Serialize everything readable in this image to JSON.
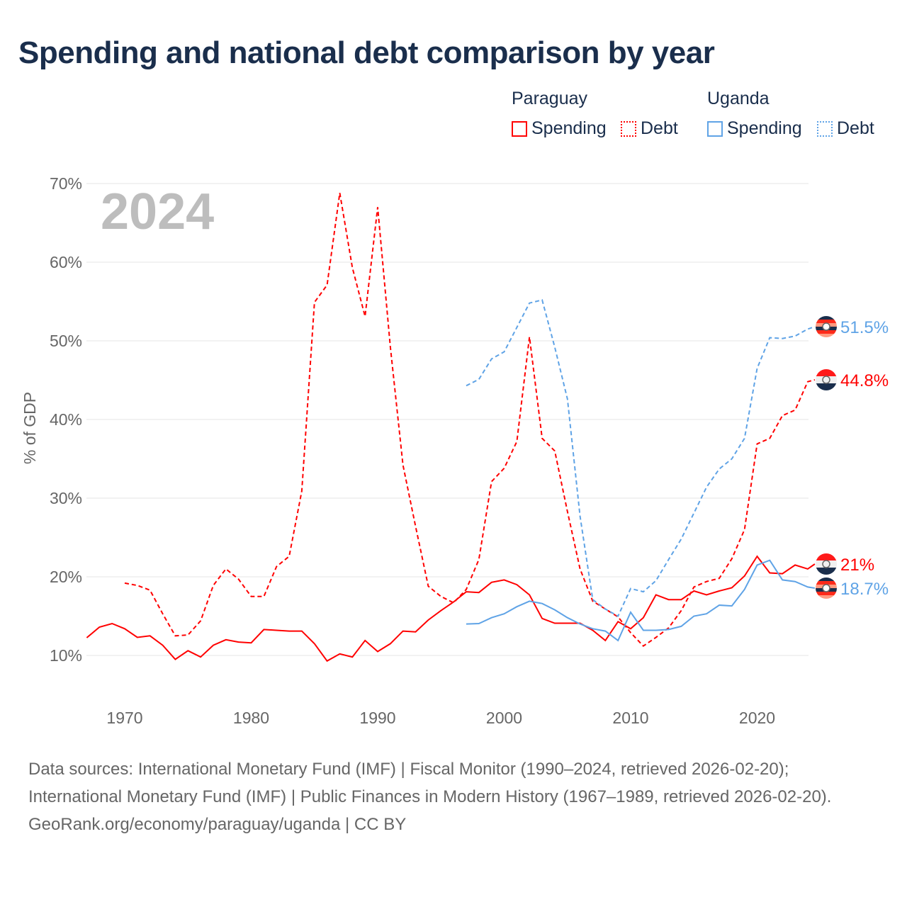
{
  "title": "Spending and national debt comparison by year",
  "legend": {
    "groups": [
      {
        "name": "Paraguay",
        "items": [
          {
            "label": "Spending",
            "style": "solid",
            "color": "#ff0000"
          },
          {
            "label": "Debt",
            "style": "dotted",
            "color": "#ff0000"
          }
        ]
      },
      {
        "name": "Uganda",
        "items": [
          {
            "label": "Spending",
            "style": "solid",
            "color": "#5fa3e6"
          },
          {
            "label": "Debt",
            "style": "dotted",
            "color": "#5fa3e6"
          }
        ]
      }
    ]
  },
  "year_overlay": "2024",
  "footer": {
    "sources": "Data sources: International Monetary Fund (IMF) | Fiscal Monitor (1990–2024, retrieved 2026-02-20); International Monetary Fund (IMF) | Public Finances in Modern History (1967–1989, retrieved 2026-02-20).",
    "credit": "GeoRank.org/economy/paraguay/uganda | CC BY"
  },
  "chart_data": {
    "type": "line",
    "title": "Spending and national debt comparison by year",
    "xlabel": "",
    "ylabel": "% of GDP",
    "xlim": [
      1967,
      2024
    ],
    "ylim": [
      5,
      72
    ],
    "xticks": [
      1970,
      1980,
      1990,
      2000,
      2010,
      2020
    ],
    "yticks": [
      10,
      20,
      30,
      40,
      50,
      60,
      70
    ],
    "ytick_labels": [
      "10%",
      "20%",
      "30%",
      "40%",
      "50%",
      "60%",
      "70%"
    ],
    "grid": "horizontal",
    "legend_position": "top-right",
    "series": [
      {
        "name": "Paraguay Spending",
        "color": "#ff0000",
        "dash": false,
        "start": 1967,
        "end_label": "21%",
        "values": [
          12.25,
          13.6,
          14.05,
          13.4,
          12.3,
          12.5,
          11.3,
          9.5,
          10.6,
          9.8,
          11.3,
          12.0,
          11.7,
          11.6,
          13.3,
          13.2,
          13.1,
          13.1,
          11.5,
          9.3,
          10.2,
          9.8,
          11.9,
          10.5,
          11.5,
          13.1,
          13.0,
          14.5,
          15.7,
          16.8,
          18.1,
          18.0,
          19.3,
          19.6,
          19.0,
          17.7,
          14.7,
          14.1,
          14.1,
          14.1,
          13.2,
          11.9,
          14.3,
          13.4,
          14.8,
          17.7,
          17.1,
          17.1,
          18.2,
          17.7,
          18.2,
          18.6,
          20.1,
          22.6,
          20.5,
          20.4,
          21.5,
          21.0
        ]
      },
      {
        "name": "Paraguay Debt",
        "color": "#ff0000",
        "dash": true,
        "start": 1970,
        "end_label": "44.8%",
        "values": [
          19.2,
          18.9,
          18.3,
          15.3,
          12.5,
          12.6,
          14.4,
          18.9,
          21.0,
          19.7,
          17.5,
          17.5,
          21.3,
          22.6,
          30.9,
          54.9,
          57.1,
          68.8,
          59.3,
          53.1,
          67.0,
          49.2,
          34.2,
          26.4,
          18.8,
          17.5,
          16.7,
          18.4,
          22.2,
          32.1,
          33.8,
          37.2,
          50.5,
          37.6,
          36.0,
          28.3,
          21.0,
          16.9,
          15.9,
          14.9,
          12.9,
          11.2,
          12.3,
          13.5,
          15.7,
          18.7,
          19.4,
          19.8,
          22.3,
          26.0,
          36.9,
          37.6,
          40.5,
          41.2,
          44.8
        ]
      },
      {
        "name": "Uganda Spending",
        "color": "#5fa3e6",
        "dash": false,
        "start": 1997,
        "end_label": "18.7%",
        "values": [
          14.0,
          14.05,
          14.8,
          15.3,
          16.2,
          16.9,
          16.6,
          15.8,
          14.8,
          14.0,
          13.4,
          13.1,
          11.9,
          15.5,
          13.2,
          13.2,
          13.3,
          13.7,
          15.0,
          15.3,
          16.4,
          16.3,
          18.4,
          21.5,
          22.1,
          19.6,
          19.4,
          18.7
        ]
      },
      {
        "name": "Uganda Debt",
        "color": "#5fa3e6",
        "dash": true,
        "start": 1997,
        "end_label": "51.5%",
        "values": [
          44.3,
          45.1,
          47.7,
          48.6,
          51.7,
          54.8,
          55.2,
          49.2,
          42.6,
          27.7,
          17.1,
          15.9,
          15.0,
          18.5,
          18.1,
          19.5,
          22.2,
          24.8,
          28.1,
          31.4,
          33.7,
          35.0,
          37.6,
          46.5,
          50.4,
          50.3,
          50.6,
          51.5
        ]
      }
    ]
  }
}
